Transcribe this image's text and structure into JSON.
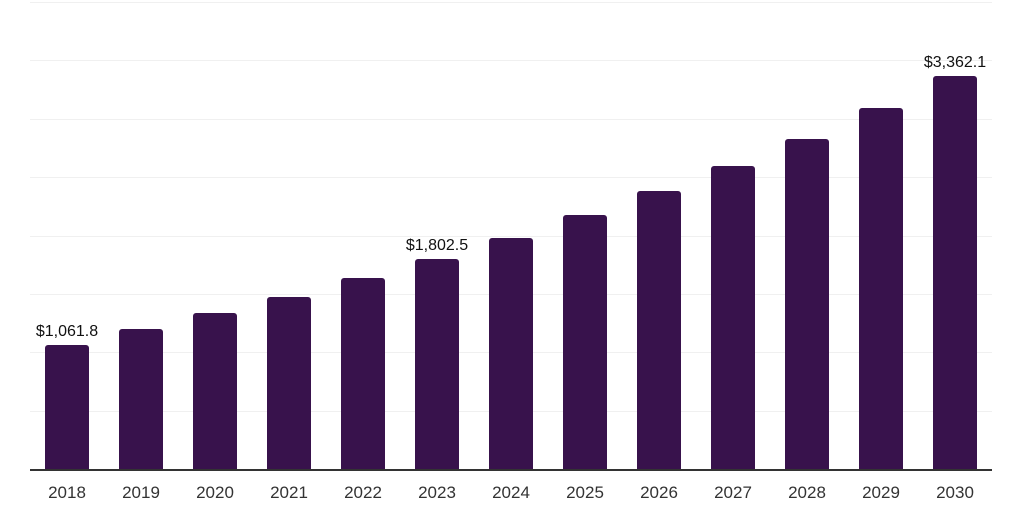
{
  "chart_data": {
    "type": "bar",
    "title": "",
    "xlabel": "",
    "ylabel": "",
    "categories": [
      "2018",
      "2019",
      "2020",
      "2021",
      "2022",
      "2023",
      "2024",
      "2025",
      "2026",
      "2027",
      "2028",
      "2029",
      "2030"
    ],
    "values": [
      1061.8,
      1196,
      1333,
      1470,
      1632,
      1802.5,
      1983,
      2180,
      2385,
      2598,
      2829,
      3094,
      3362.1
    ],
    "bar_labels": [
      "$1,061.8",
      "",
      "",
      "",
      "",
      "$1,802.5",
      "",
      "",
      "",
      "",
      "",
      "",
      "$3,362.1"
    ],
    "ylim": [
      0,
      4000
    ],
    "gridline_step": 500,
    "grid": true,
    "legend": false,
    "colors": {
      "bar": "#38124C",
      "grid": "#f0f0f0",
      "axis": "#333333",
      "value_label": "#111111",
      "tick_label": "#333333",
      "background": "#ffffff"
    }
  }
}
